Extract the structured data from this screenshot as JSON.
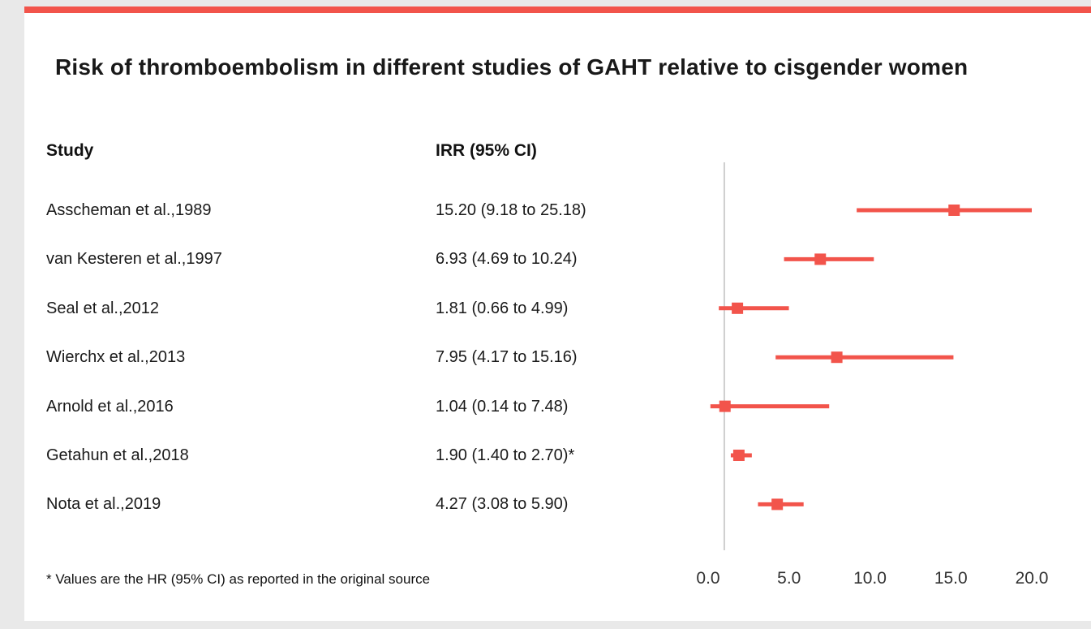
{
  "title": "Risk of thromboembolism in different studies of GAHT relative to cisgender women",
  "columns": {
    "study": "Study",
    "irr": "IRR (95% CI)"
  },
  "footnote": "* Values are the HR (95% CI) as reported in the original source",
  "colors": {
    "accent": "#f2544b",
    "reference_line": "#cfcfcf",
    "text": "#1a1a1a",
    "page_margin": "#e9e9e9"
  },
  "chart_data": {
    "type": "scatter",
    "variant": "forest-plot",
    "title": "Risk of thromboembolism in different studies of GAHT relative to cisgender women",
    "xlabel": "",
    "ylabel": "",
    "xlim": [
      0,
      20
    ],
    "x_ticks": [
      "0.0",
      "5.0",
      "10.0",
      "15.0",
      "20.0"
    ],
    "x_tick_values": [
      0,
      5,
      10,
      15,
      20
    ],
    "reference_line_x": 1.0,
    "grid": false,
    "legend": "none",
    "studies": [
      {
        "label": "Asscheman et al.,1989",
        "irr_text": "15.20 (9.18 to 25.18)",
        "estimate": 15.2,
        "ci_low": 9.18,
        "ci_high": 25.18
      },
      {
        "label": "van Kesteren et al.,1997",
        "irr_text": "6.93 (4.69 to 10.24)",
        "estimate": 6.93,
        "ci_low": 4.69,
        "ci_high": 10.24
      },
      {
        "label": "Seal et al.,2012",
        "irr_text": "1.81 (0.66 to 4.99)",
        "estimate": 1.81,
        "ci_low": 0.66,
        "ci_high": 4.99
      },
      {
        "label": "Wierchx et al.,2013",
        "irr_text": "7.95 (4.17 to 15.16)",
        "estimate": 7.95,
        "ci_low": 4.17,
        "ci_high": 15.16
      },
      {
        "label": "Arnold et al.,2016",
        "irr_text": "1.04 (0.14 to 7.48)",
        "estimate": 1.04,
        "ci_low": 0.14,
        "ci_high": 7.48
      },
      {
        "label": "Getahun et al.,2018",
        "irr_text": "1.90 (1.40 to 2.70)*",
        "estimate": 1.9,
        "ci_low": 1.4,
        "ci_high": 2.7
      },
      {
        "label": "Nota et al.,2019",
        "irr_text": "4.27 (3.08 to 5.90)",
        "estimate": 4.27,
        "ci_low": 3.08,
        "ci_high": 5.9
      }
    ]
  }
}
